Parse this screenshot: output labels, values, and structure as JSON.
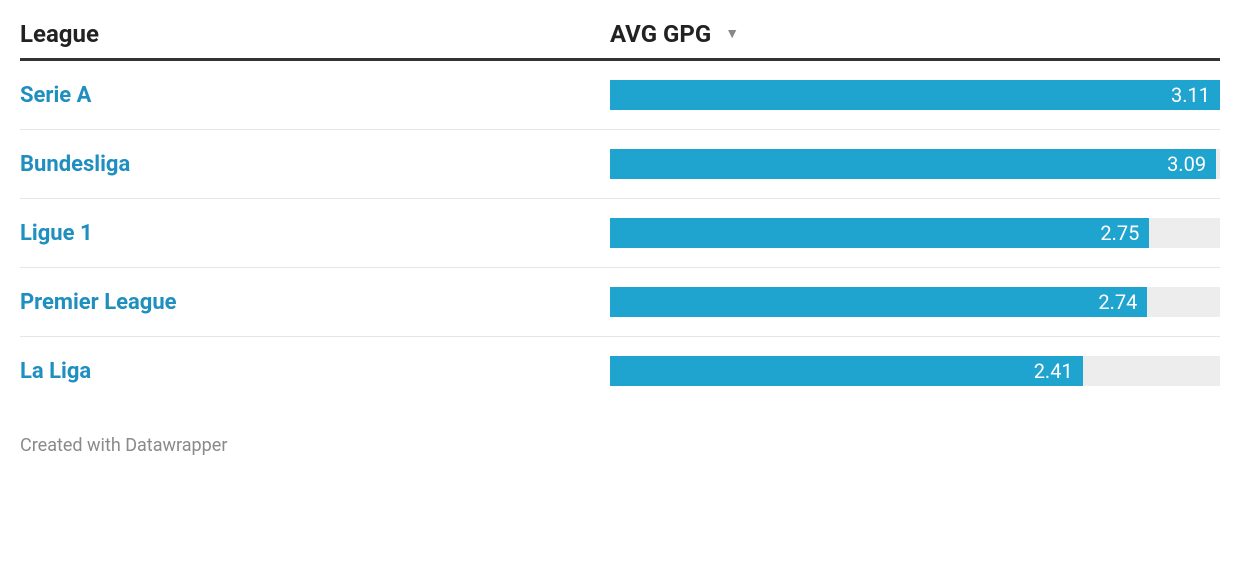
{
  "chart": {
    "type": "bar",
    "header": {
      "league_label": "League",
      "gpg_label": "AVG GPG",
      "sort_glyph": "▼"
    },
    "bar_color": "#1fa3cf",
    "bar_track_color": "#ededed",
    "link_color": "#1f8fbf",
    "header_border_color": "#333333",
    "row_border_color": "#e6e6e6",
    "value_text_color": "#ffffff",
    "background_color": "#ffffff",
    "value_fontsize": 20,
    "label_fontsize": 22,
    "header_fontsize": 24,
    "max_value": 3.11,
    "rows": [
      {
        "league": "Serie A",
        "value": 3.11,
        "value_label": "3.11"
      },
      {
        "league": "Bundesliga",
        "value": 3.09,
        "value_label": "3.09"
      },
      {
        "league": "Ligue 1",
        "value": 2.75,
        "value_label": "2.75"
      },
      {
        "league": "Premier League",
        "value": 2.74,
        "value_label": "2.74"
      },
      {
        "league": "La Liga",
        "value": 2.41,
        "value_label": "2.41"
      }
    ],
    "footer": "Created with Datawrapper"
  }
}
